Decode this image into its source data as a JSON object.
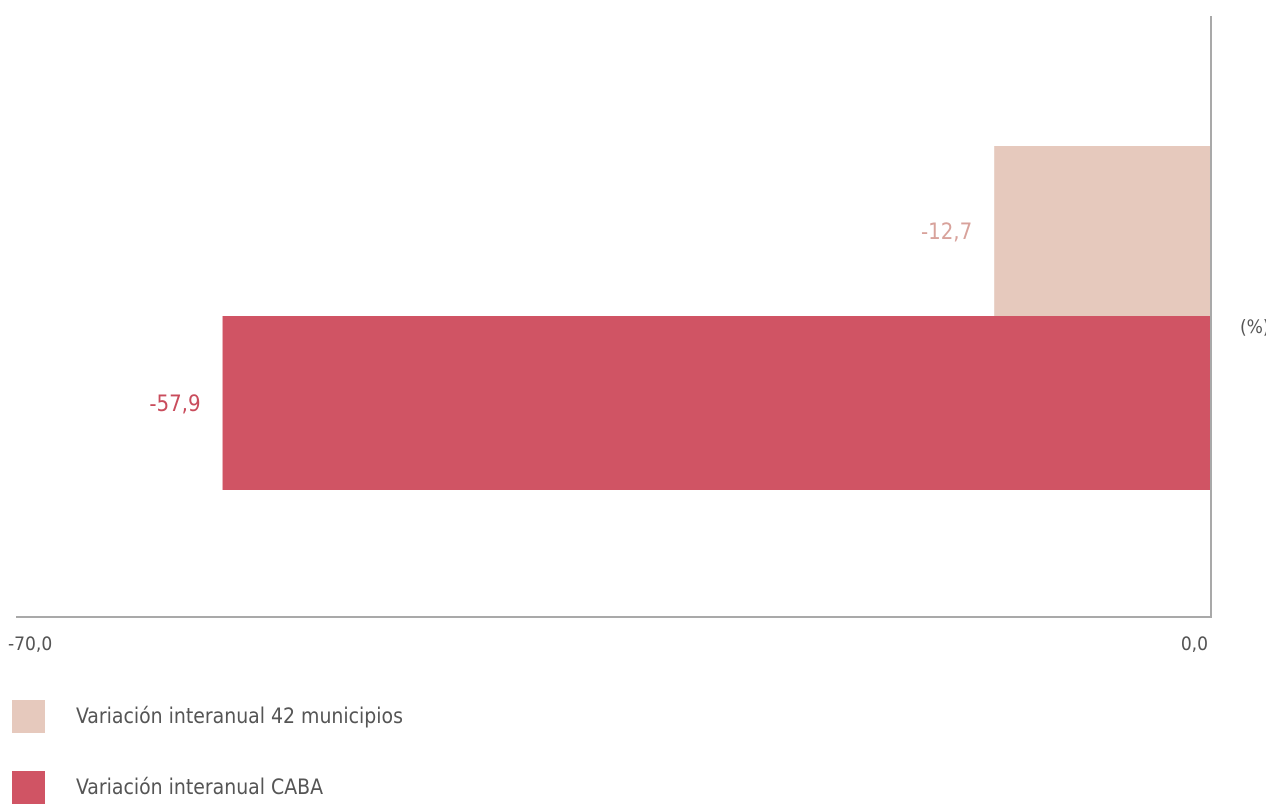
{
  "chart_data": {
    "type": "bar",
    "orientation": "horizontal",
    "unit_label": "(%)",
    "xlim": [
      -70,
      0
    ],
    "tick_labels": [
      "-70,0",
      "0,0"
    ],
    "grid": false,
    "legend_position": "bottom-left",
    "series": [
      {
        "name": "Variación interanual 42 municipios",
        "value": -12.7,
        "label": "-12,7",
        "color": "#e6c9bd",
        "label_color": "#d8a29b"
      },
      {
        "name": "Variación interanual CABA",
        "value": -57.9,
        "label": "-57,9",
        "color": "#d05464",
        "label_color": "#c94c5c"
      }
    ]
  }
}
